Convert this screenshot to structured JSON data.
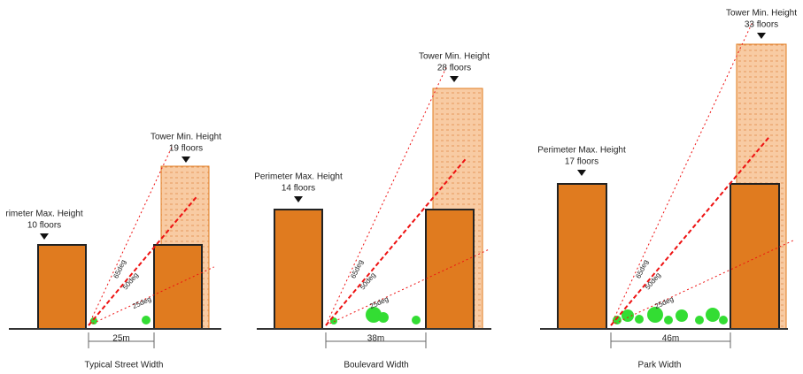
{
  "panels": [
    {
      "perimeter": {
        "label": "rimeter Max. Height",
        "floors": "10 floors"
      },
      "tower": {
        "label": "Tower Min. Height",
        "floors": "19 floors"
      },
      "angles": [
        "65deg",
        "50deg",
        "25deg"
      ],
      "width": "25m",
      "caption": "Typical Street Width"
    },
    {
      "perimeter": {
        "label": "Perimeter Max. Height",
        "floors": "14 floors"
      },
      "tower": {
        "label": "Tower Min. Height",
        "floors": "28 floors"
      },
      "angles": [
        "65deg",
        "50deg",
        "25deg"
      ],
      "width": "38m",
      "caption": "Boulevard Width"
    },
    {
      "perimeter": {
        "label": "Perimeter Max. Height",
        "floors": "17 floors"
      },
      "tower": {
        "label": "Tower Min. Height",
        "floors": "33 floors"
      },
      "angles": [
        "65deg",
        "50deg",
        "25deg"
      ],
      "width": "46m",
      "caption": "Park Width"
    }
  ]
}
